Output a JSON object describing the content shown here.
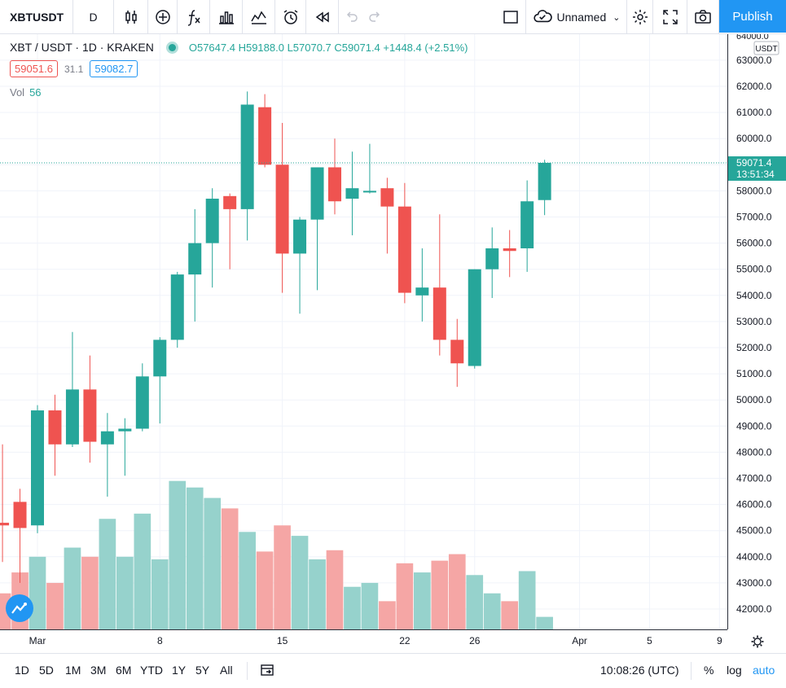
{
  "toolbar": {
    "symbol": "XBTUSDT",
    "interval": "D",
    "layout_name": "Unnamed",
    "publish_label": "Publish",
    "icons": [
      "candles-icon",
      "add-indicator-icon",
      "fx-icon",
      "bars-compare-icon",
      "templates-icon",
      "alert-icon",
      "replay-icon",
      "undo-icon",
      "redo-icon",
      "fullscreen-square-icon",
      "cloud-icon",
      "settings-icon",
      "fullscreen-icon",
      "camera-icon"
    ]
  },
  "legend": {
    "title": "XBT / USDT · 1D · KRAKEN",
    "ohlc": "O57647.4  H59188.0  L57070.7  C59071.4  +1448.4 (+2.51%)",
    "bid": "59051.6",
    "spread": "31.1",
    "ask": "59082.7",
    "vol_label": "Vol",
    "vol_value": "56"
  },
  "price_axis": {
    "currency": "USDT",
    "last_price": "59071.4",
    "countdown": "13:51:34",
    "top_partial": "64000.0"
  },
  "bottombar": {
    "ranges": [
      "1D",
      "5D",
      "1M",
      "3M",
      "6M",
      "YTD",
      "1Y",
      "5Y",
      "All"
    ],
    "time": "10:08:26 (UTC)",
    "percent": "%",
    "log": "log",
    "auto": "auto"
  },
  "colors": {
    "up": "#26a69a",
    "down": "#ef5350",
    "up_vol": "#96d2cc",
    "down_vol": "#f5a6a5",
    "accent": "#2196f3",
    "grid": "#f0f3fa"
  },
  "chart_data": {
    "type": "candlestick",
    "title": "XBT / USDT · 1D · KRAKEN",
    "ylim": [
      41000,
      64000
    ],
    "y_ticks": [
      42000,
      43000,
      44000,
      45000,
      46000,
      47000,
      48000,
      49000,
      50000,
      51000,
      52000,
      53000,
      54000,
      55000,
      56000,
      57000,
      58000,
      59000,
      60000,
      61000,
      62000,
      63000
    ],
    "x_tick_labels": [
      {
        "day": 1,
        "label": "Mar"
      },
      {
        "day": 8,
        "label": "8"
      },
      {
        "day": 15,
        "label": "15"
      },
      {
        "day": 22,
        "label": "22"
      },
      {
        "day": 26,
        "label": "26"
      },
      {
        "day": 32,
        "label": "Apr"
      },
      {
        "day": 36,
        "label": "5"
      },
      {
        "day": 40,
        "label": "9"
      }
    ],
    "candles": [
      {
        "day": -1,
        "o": 45300,
        "h": 48300,
        "l": 43800,
        "c": 45200
      },
      {
        "day": 0,
        "o": 46100,
        "h": 46600,
        "l": 43000,
        "c": 45100
      },
      {
        "day": 1,
        "o": 45200,
        "h": 49800,
        "l": 44900,
        "c": 49600
      },
      {
        "day": 2,
        "o": 49600,
        "h": 50200,
        "l": 47100,
        "c": 48300
      },
      {
        "day": 3,
        "o": 48300,
        "h": 52600,
        "l": 48200,
        "c": 50400
      },
      {
        "day": 4,
        "o": 50400,
        "h": 51700,
        "l": 47600,
        "c": 48400
      },
      {
        "day": 5,
        "o": 48300,
        "h": 49500,
        "l": 46300,
        "c": 48800
      },
      {
        "day": 6,
        "o": 48800,
        "h": 49300,
        "l": 47100,
        "c": 48900
      },
      {
        "day": 7,
        "o": 48900,
        "h": 51400,
        "l": 48800,
        "c": 50900
      },
      {
        "day": 8,
        "o": 50900,
        "h": 52400,
        "l": 49100,
        "c": 52300
      },
      {
        "day": 9,
        "o": 52300,
        "h": 54900,
        "l": 52000,
        "c": 54800
      },
      {
        "day": 10,
        "o": 54800,
        "h": 57300,
        "l": 53000,
        "c": 56000
      },
      {
        "day": 11,
        "o": 56000,
        "h": 58100,
        "l": 54300,
        "c": 57700
      },
      {
        "day": 12,
        "o": 57800,
        "h": 57900,
        "l": 55000,
        "c": 57300
      },
      {
        "day": 13,
        "o": 57300,
        "h": 61800,
        "l": 56100,
        "c": 61300
      },
      {
        "day": 14,
        "o": 61200,
        "h": 61700,
        "l": 58900,
        "c": 59000
      },
      {
        "day": 15,
        "o": 59000,
        "h": 60600,
        "l": 54100,
        "c": 55600
      },
      {
        "day": 16,
        "o": 55600,
        "h": 57000,
        "l": 53300,
        "c": 56900
      },
      {
        "day": 17,
        "o": 56900,
        "h": 58900,
        "l": 54200,
        "c": 58900
      },
      {
        "day": 18,
        "o": 58900,
        "h": 60000,
        "l": 57100,
        "c": 57600
      },
      {
        "day": 19,
        "o": 57700,
        "h": 59500,
        "l": 56300,
        "c": 58100
      },
      {
        "day": 20,
        "o": 58000,
        "h": 59800,
        "l": 57900,
        "c": 58000
      },
      {
        "day": 21,
        "o": 58100,
        "h": 58500,
        "l": 55600,
        "c": 57400
      },
      {
        "day": 22,
        "o": 57400,
        "h": 58300,
        "l": 53700,
        "c": 54100
      },
      {
        "day": 23,
        "o": 54000,
        "h": 55800,
        "l": 53000,
        "c": 54300
      },
      {
        "day": 24,
        "o": 54300,
        "h": 57100,
        "l": 51700,
        "c": 52300
      },
      {
        "day": 25,
        "o": 52300,
        "h": 53100,
        "l": 50500,
        "c": 51400
      },
      {
        "day": 26,
        "o": 51300,
        "h": 55000,
        "l": 51200,
        "c": 55000
      },
      {
        "day": 27,
        "o": 55000,
        "h": 56600,
        "l": 53900,
        "c": 55800
      },
      {
        "day": 28,
        "o": 55800,
        "h": 56500,
        "l": 54700,
        "c": 55700
      },
      {
        "day": 29,
        "o": 55800,
        "h": 58400,
        "l": 54900,
        "c": 57600
      },
      {
        "day": 30,
        "o": 57647.4,
        "h": 59188.0,
        "l": 57070.7,
        "c": 59071.4
      }
    ],
    "volume": [
      {
        "day": -1,
        "v": 42600,
        "up": false
      },
      {
        "day": 0,
        "v": 43400,
        "up": false
      },
      {
        "day": 1,
        "v": 44000,
        "up": true
      },
      {
        "day": 2,
        "v": 43000,
        "up": false
      },
      {
        "day": 3,
        "v": 44350,
        "up": true
      },
      {
        "day": 4,
        "v": 44000,
        "up": false
      },
      {
        "day": 5,
        "v": 45450,
        "up": true
      },
      {
        "day": 6,
        "v": 44000,
        "up": true
      },
      {
        "day": 7,
        "v": 45650,
        "up": true
      },
      {
        "day": 8,
        "v": 43900,
        "up": true
      },
      {
        "day": 9,
        "v": 46900,
        "up": true
      },
      {
        "day": 10,
        "v": 46650,
        "up": true
      },
      {
        "day": 11,
        "v": 46250,
        "up": true
      },
      {
        "day": 12,
        "v": 45850,
        "up": false
      },
      {
        "day": 13,
        "v": 44950,
        "up": true
      },
      {
        "day": 14,
        "v": 44200,
        "up": false
      },
      {
        "day": 15,
        "v": 45200,
        "up": false
      },
      {
        "day": 16,
        "v": 44800,
        "up": true
      },
      {
        "day": 17,
        "v": 43900,
        "up": true
      },
      {
        "day": 18,
        "v": 44250,
        "up": false
      },
      {
        "day": 19,
        "v": 42850,
        "up": true
      },
      {
        "day": 20,
        "v": 43000,
        "up": true
      },
      {
        "day": 21,
        "v": 42300,
        "up": false
      },
      {
        "day": 22,
        "v": 43750,
        "up": false
      },
      {
        "day": 23,
        "v": 43400,
        "up": true
      },
      {
        "day": 24,
        "v": 43850,
        "up": false
      },
      {
        "day": 25,
        "v": 44100,
        "up": false
      },
      {
        "day": 26,
        "v": 43300,
        "up": true
      },
      {
        "day": 27,
        "v": 42600,
        "up": true
      },
      {
        "day": 28,
        "v": 42300,
        "up": false
      },
      {
        "day": 29,
        "v": 43450,
        "up": true
      },
      {
        "day": 30,
        "v": 41700,
        "up": true
      }
    ],
    "last_price_line": 59071.4
  }
}
